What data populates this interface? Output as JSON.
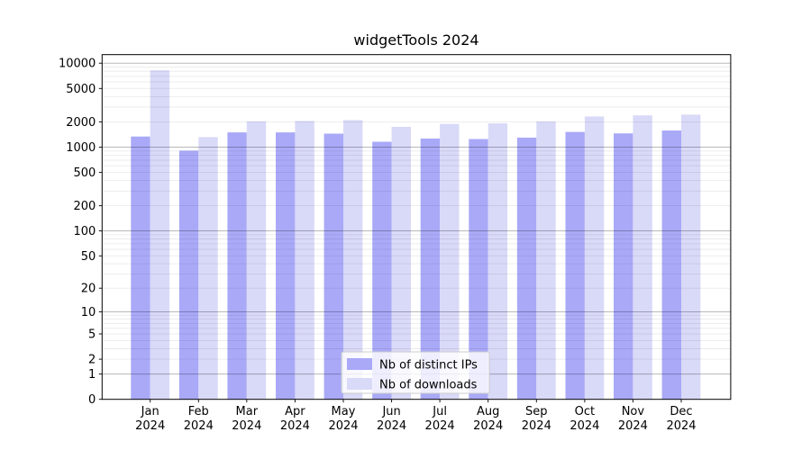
{
  "title": "widgetTools 2024",
  "colors": {
    "distinct_ips_bar": "#a9a9f8",
    "downloads_bar": "#d9d9f8",
    "axis": "#000000",
    "major_grid": "rgba(0,0,0,0.28)",
    "minor_grid": "rgba(0,0,0,0.08)",
    "legend_fill": "rgba(255,255,255,0.8)",
    "legend_border": "#cccccc",
    "background": "#ffffff"
  },
  "legend": {
    "items": [
      {
        "label": "Nb of distinct IPs",
        "series": "distinct_ips"
      },
      {
        "label": "Nb of downloads",
        "series": "downloads"
      }
    ]
  },
  "chart_data": {
    "type": "bar",
    "title": "widgetTools 2024",
    "categories": [
      "Jan 2024",
      "Feb 2024",
      "Mar 2024",
      "Apr 2024",
      "May 2024",
      "Jun 2024",
      "Jul 2024",
      "Aug 2024",
      "Sep 2024",
      "Oct 2024",
      "Nov 2024",
      "Dec 2024"
    ],
    "series": [
      {
        "name": "Nb of distinct IPs",
        "key": "distinct_ips",
        "color": "#a9a9f8",
        "values": [
          1340,
          910,
          1500,
          1500,
          1450,
          1160,
          1270,
          1250,
          1300,
          1520,
          1460,
          1580
        ]
      },
      {
        "name": "Nb of downloads",
        "key": "downloads",
        "color": "#d9d9f8",
        "values": [
          8200,
          1320,
          2030,
          2050,
          2100,
          1750,
          1890,
          1920,
          2020,
          2320,
          2390,
          2440
        ]
      }
    ],
    "xlabel": "",
    "ylabel": "",
    "yscale": "log1p",
    "ylim": [
      0,
      12640
    ],
    "yticks": [
      0,
      1,
      2,
      5,
      10,
      20,
      50,
      100,
      200,
      500,
      1000,
      2000,
      5000,
      10000
    ],
    "grid": {
      "horizontal_only": true,
      "major_at": "decades",
      "minor_at": "2-9 per decade"
    },
    "legend_position": "lower center"
  }
}
